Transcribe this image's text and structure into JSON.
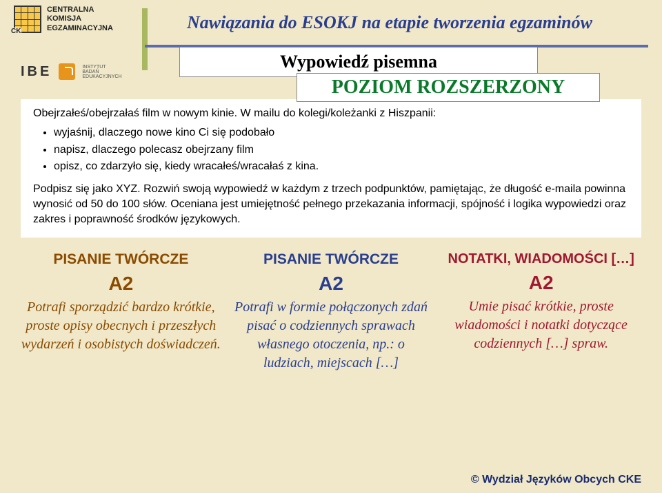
{
  "org": {
    "line1": "CENTRALNA",
    "line2": "KOMISJA",
    "line3": "EGZAMINACYJNA",
    "ck": "CK"
  },
  "title": "Nawiązania do ESOKJ na etapie tworzenia egzaminów",
  "ibe": {
    "label": "IBE",
    "sub1": "INSTYTUT",
    "sub2": "BADAŃ",
    "sub3": "EDUKACYJNYCH"
  },
  "subtitle": "Wypowiedź pisemna",
  "level": "POZIOM ROZSZERZONY",
  "task": {
    "intro": "Obejrzałeś/obejrzałaś film w nowym kinie. W mailu do kolegi/koleżanki z Hiszpanii:",
    "b1": "wyjaśnij, dlaczego nowe kino Ci się podobało",
    "b2": "napisz, dlaczego polecasz obejrzany film",
    "b3": "opisz, co zdarzyło się, kiedy wracałeś/wracałaś z kina.",
    "outro": "Podpisz się jako XYZ. Rozwiń swoją wypowiedź w każdym z trzech podpunktów, pamiętając, że długość e-maila powinna wynosić od 50 do 100 słów. Oceniana jest umiejętność pełnego przekazania informacji, spójność i logika wypowiedzi oraz zakres i poprawność środków językowych."
  },
  "cols": {
    "c1": {
      "h": "PISANIE TWÓRCZE",
      "lvl": "A2",
      "body": "Potrafi sporządzić bardzo krótkie, proste opisy obecnych i przeszłych wydarzeń i osobistych doświadczeń."
    },
    "c2": {
      "h": "PISANIE TWÓRCZE",
      "lvl": "A2",
      "body": "Potrafi w formie połączonych zdań pisać o codziennych sprawach własnego otoczenia, np.: o ludziach, miejscach […]"
    },
    "c3": {
      "h": "NOTATKI, WIADOMOŚCI […]",
      "lvl": "A2",
      "body": "Umie pisać krótkie, proste wiadomości i notatki dotyczące codziennych […] spraw."
    }
  },
  "footer": "© Wydział Języków Obcych CKE",
  "colors": {
    "bg": "#f0e8c8",
    "title": "#2a3e8f",
    "level": "#0a7a2a",
    "col1": "#8a4a00",
    "col2": "#2a3e8f",
    "col3": "#a01830",
    "hbar": "#5a6bb0",
    "vbar": "#a8b860"
  }
}
